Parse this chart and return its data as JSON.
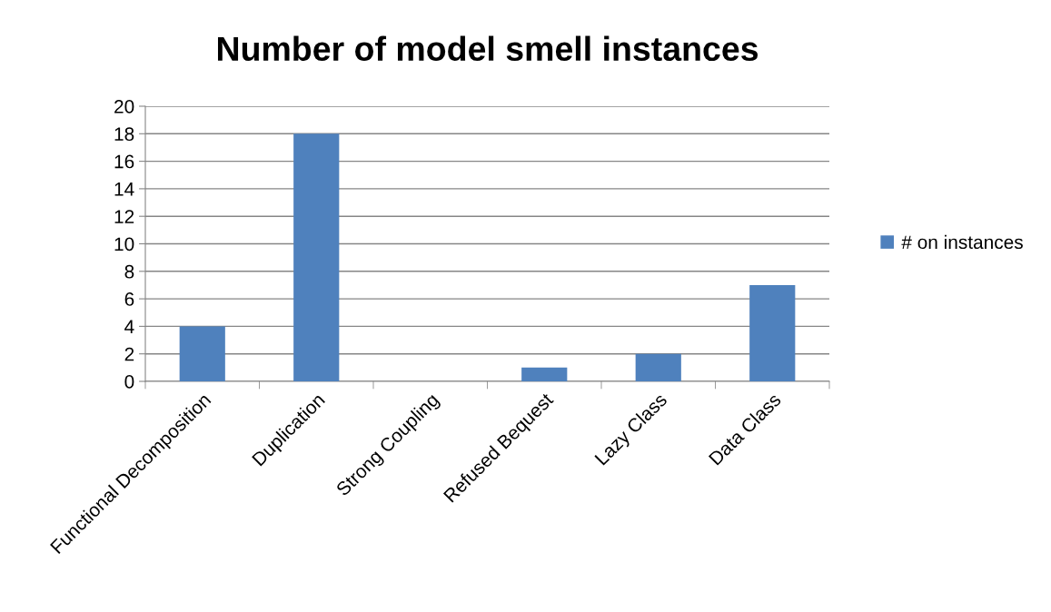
{
  "chart_data": {
    "type": "bar",
    "title": "Number of model smell instances",
    "categories": [
      "Functional Decomposition",
      "Duplication",
      "Strong Coupling",
      "Refused Bequest",
      "Lazy Class",
      "Data Class"
    ],
    "series": [
      {
        "name": "# on instances",
        "color": "#4f81bd",
        "values": [
          4,
          18,
          0,
          1,
          2,
          7
        ]
      }
    ],
    "ylim": [
      0,
      20
    ],
    "yticks": [
      0,
      2,
      4,
      6,
      8,
      10,
      12,
      14,
      16,
      18,
      20
    ],
    "grid": "y",
    "legend": "right"
  }
}
